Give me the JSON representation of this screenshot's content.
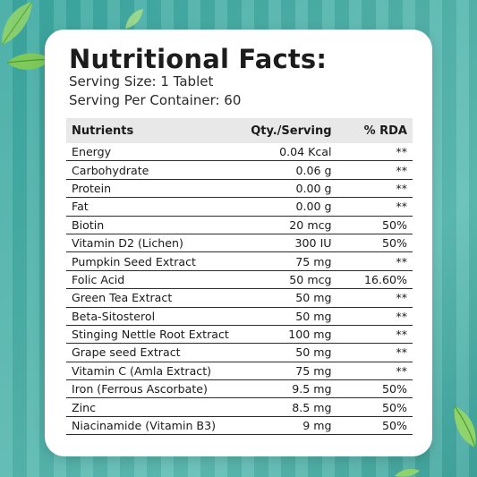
{
  "title": "Nutritional Facts:",
  "serving_size": "Serving Size: 1 Tablet",
  "serving_per_container": "Serving Per Container: 60",
  "table": {
    "headers": {
      "nutrient": "Nutrients",
      "qty": "Qty./Serving",
      "rda": "% RDA"
    },
    "rows": [
      {
        "nutrient": "Energy",
        "qty": "0.04 Kcal",
        "rda": "**"
      },
      {
        "nutrient": "Carbohydrate",
        "qty": "0.06 g",
        "rda": "**"
      },
      {
        "nutrient": "Protein",
        "qty": "0.00 g",
        "rda": "**"
      },
      {
        "nutrient": "Fat",
        "qty": "0.00 g",
        "rda": "**"
      },
      {
        "nutrient": "Biotin",
        "qty": "20 mcg",
        "rda": "50%"
      },
      {
        "nutrient": "Vitamin D2 (Lichen)",
        "qty": "300 IU",
        "rda": "50%"
      },
      {
        "nutrient": "Pumpkin Seed Extract",
        "qty": "75 mg",
        "rda": "**"
      },
      {
        "nutrient": "Folic Acid",
        "qty": "50 mcg",
        "rda": "16.60%"
      },
      {
        "nutrient": "Green Tea Extract",
        "qty": "50 mg",
        "rda": "**"
      },
      {
        "nutrient": "Beta-Sitosterol",
        "qty": "50 mg",
        "rda": "**"
      },
      {
        "nutrient": "Stinging Nettle Root Extract",
        "qty": "100 mg",
        "rda": "**"
      },
      {
        "nutrient": "Grape seed Extract",
        "qty": "50 mg",
        "rda": "**"
      },
      {
        "nutrient": "Vitamin C (Amla Extract)",
        "qty": "75 mg",
        "rda": "**"
      },
      {
        "nutrient": "Iron (Ferrous Ascorbate)",
        "qty": "9.5 mg",
        "rda": "50%"
      },
      {
        "nutrient": "Zinc",
        "qty": "8.5 mg",
        "rda": "50%"
      },
      {
        "nutrient": "Niacinamide (Vitamin B3)",
        "qty": "9 mg",
        "rda": "50%"
      }
    ]
  },
  "colors": {
    "background": "#4fb3ab",
    "card": "#ffffff",
    "header_row": "#e8e8e8",
    "leaf": "#8fd36a"
  },
  "icons": [
    "leaf-icon"
  ]
}
